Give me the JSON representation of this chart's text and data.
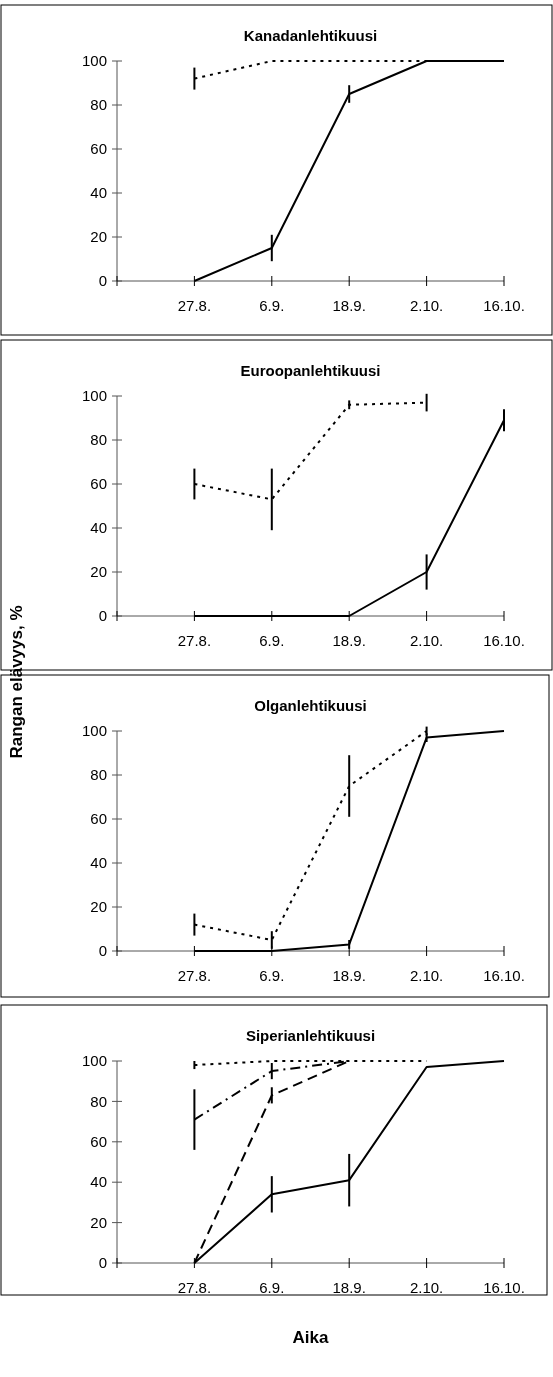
{
  "chart_data": [
    {
      "type": "line",
      "title": "Kanadanlehtikuusi",
      "categories": [
        "27.8.",
        "6.9.",
        "18.9.",
        "2.10.",
        "16.10."
      ],
      "ylim": [
        0,
        100
      ],
      "yticks": [
        0,
        20,
        40,
        60,
        80,
        100
      ],
      "grid": false,
      "marker": "none",
      "series": [
        {
          "color": "#000000",
          "line_style": "solid",
          "values": [
            0,
            15,
            85,
            100,
            100
          ],
          "errors": [
            null,
            6,
            4,
            null,
            null
          ]
        },
        {
          "color": "#000000",
          "line_style": "dotted",
          "values": [
            92,
            100,
            100,
            100,
            null
          ],
          "errors": [
            5,
            null,
            null,
            null,
            null
          ]
        }
      ]
    },
    {
      "type": "line",
      "title": "Euroopanlehtikuusi",
      "ylabel": "Rangan elävyys, %",
      "categories": [
        "27.8.",
        "6.9.",
        "18.9.",
        "2.10.",
        "16.10."
      ],
      "ylim": [
        0,
        100
      ],
      "yticks": [
        0,
        20,
        40,
        60,
        80,
        100
      ],
      "grid": false,
      "marker": "none",
      "series": [
        {
          "color": "#000000",
          "line_style": "solid",
          "values": [
            0,
            0,
            0,
            20,
            89
          ],
          "errors": [
            null,
            null,
            null,
            8,
            5
          ]
        },
        {
          "color": "#000000",
          "line_style": "dotted",
          "values": [
            60,
            53,
            96,
            97,
            null
          ],
          "errors": [
            7,
            14,
            2,
            4,
            null
          ]
        }
      ]
    },
    {
      "type": "line",
      "title": "Olganlehtikuusi",
      "categories": [
        "27.8.",
        "6.9.",
        "18.9.",
        "2.10.",
        "16.10."
      ],
      "ylim": [
        0,
        100
      ],
      "yticks": [
        0,
        20,
        40,
        60,
        80,
        100
      ],
      "grid": false,
      "marker": "none",
      "series": [
        {
          "color": "#000000",
          "line_style": "solid",
          "values": [
            0,
            0,
            3,
            97,
            100
          ],
          "errors": [
            null,
            null,
            2,
            2,
            null
          ]
        },
        {
          "color": "#000000",
          "line_style": "dotted",
          "values": [
            12,
            5,
            75,
            100,
            null
          ],
          "errors": [
            5,
            4,
            14,
            2,
            null
          ]
        }
      ]
    },
    {
      "type": "line",
      "title": "Siperianlehtikuusi",
      "xlabel": "Aika",
      "categories": [
        "27.8.",
        "6.9.",
        "18.9.",
        "2.10.",
        "16.10."
      ],
      "ylim": [
        0,
        100
      ],
      "yticks": [
        0,
        20,
        40,
        60,
        80,
        100
      ],
      "grid": false,
      "marker": "none",
      "series": [
        {
          "color": "#000000",
          "line_style": "solid",
          "values": [
            0,
            34,
            41,
            97,
            100
          ],
          "errors": [
            null,
            9,
            13,
            null,
            null
          ]
        },
        {
          "color": "#000000",
          "line_style": "dashed",
          "values": [
            0,
            83,
            100,
            null,
            null
          ],
          "errors": [
            null,
            4,
            null,
            null,
            null
          ]
        },
        {
          "color": "#000000",
          "line_style": "dashdot",
          "values": [
            71,
            95,
            100,
            null,
            null
          ],
          "errors": [
            15,
            4,
            null,
            null,
            null
          ]
        },
        {
          "color": "#000000",
          "line_style": "dotted",
          "values": [
            98,
            100,
            100,
            100,
            null
          ],
          "errors": [
            2,
            null,
            null,
            null,
            null
          ]
        }
      ]
    }
  ]
}
